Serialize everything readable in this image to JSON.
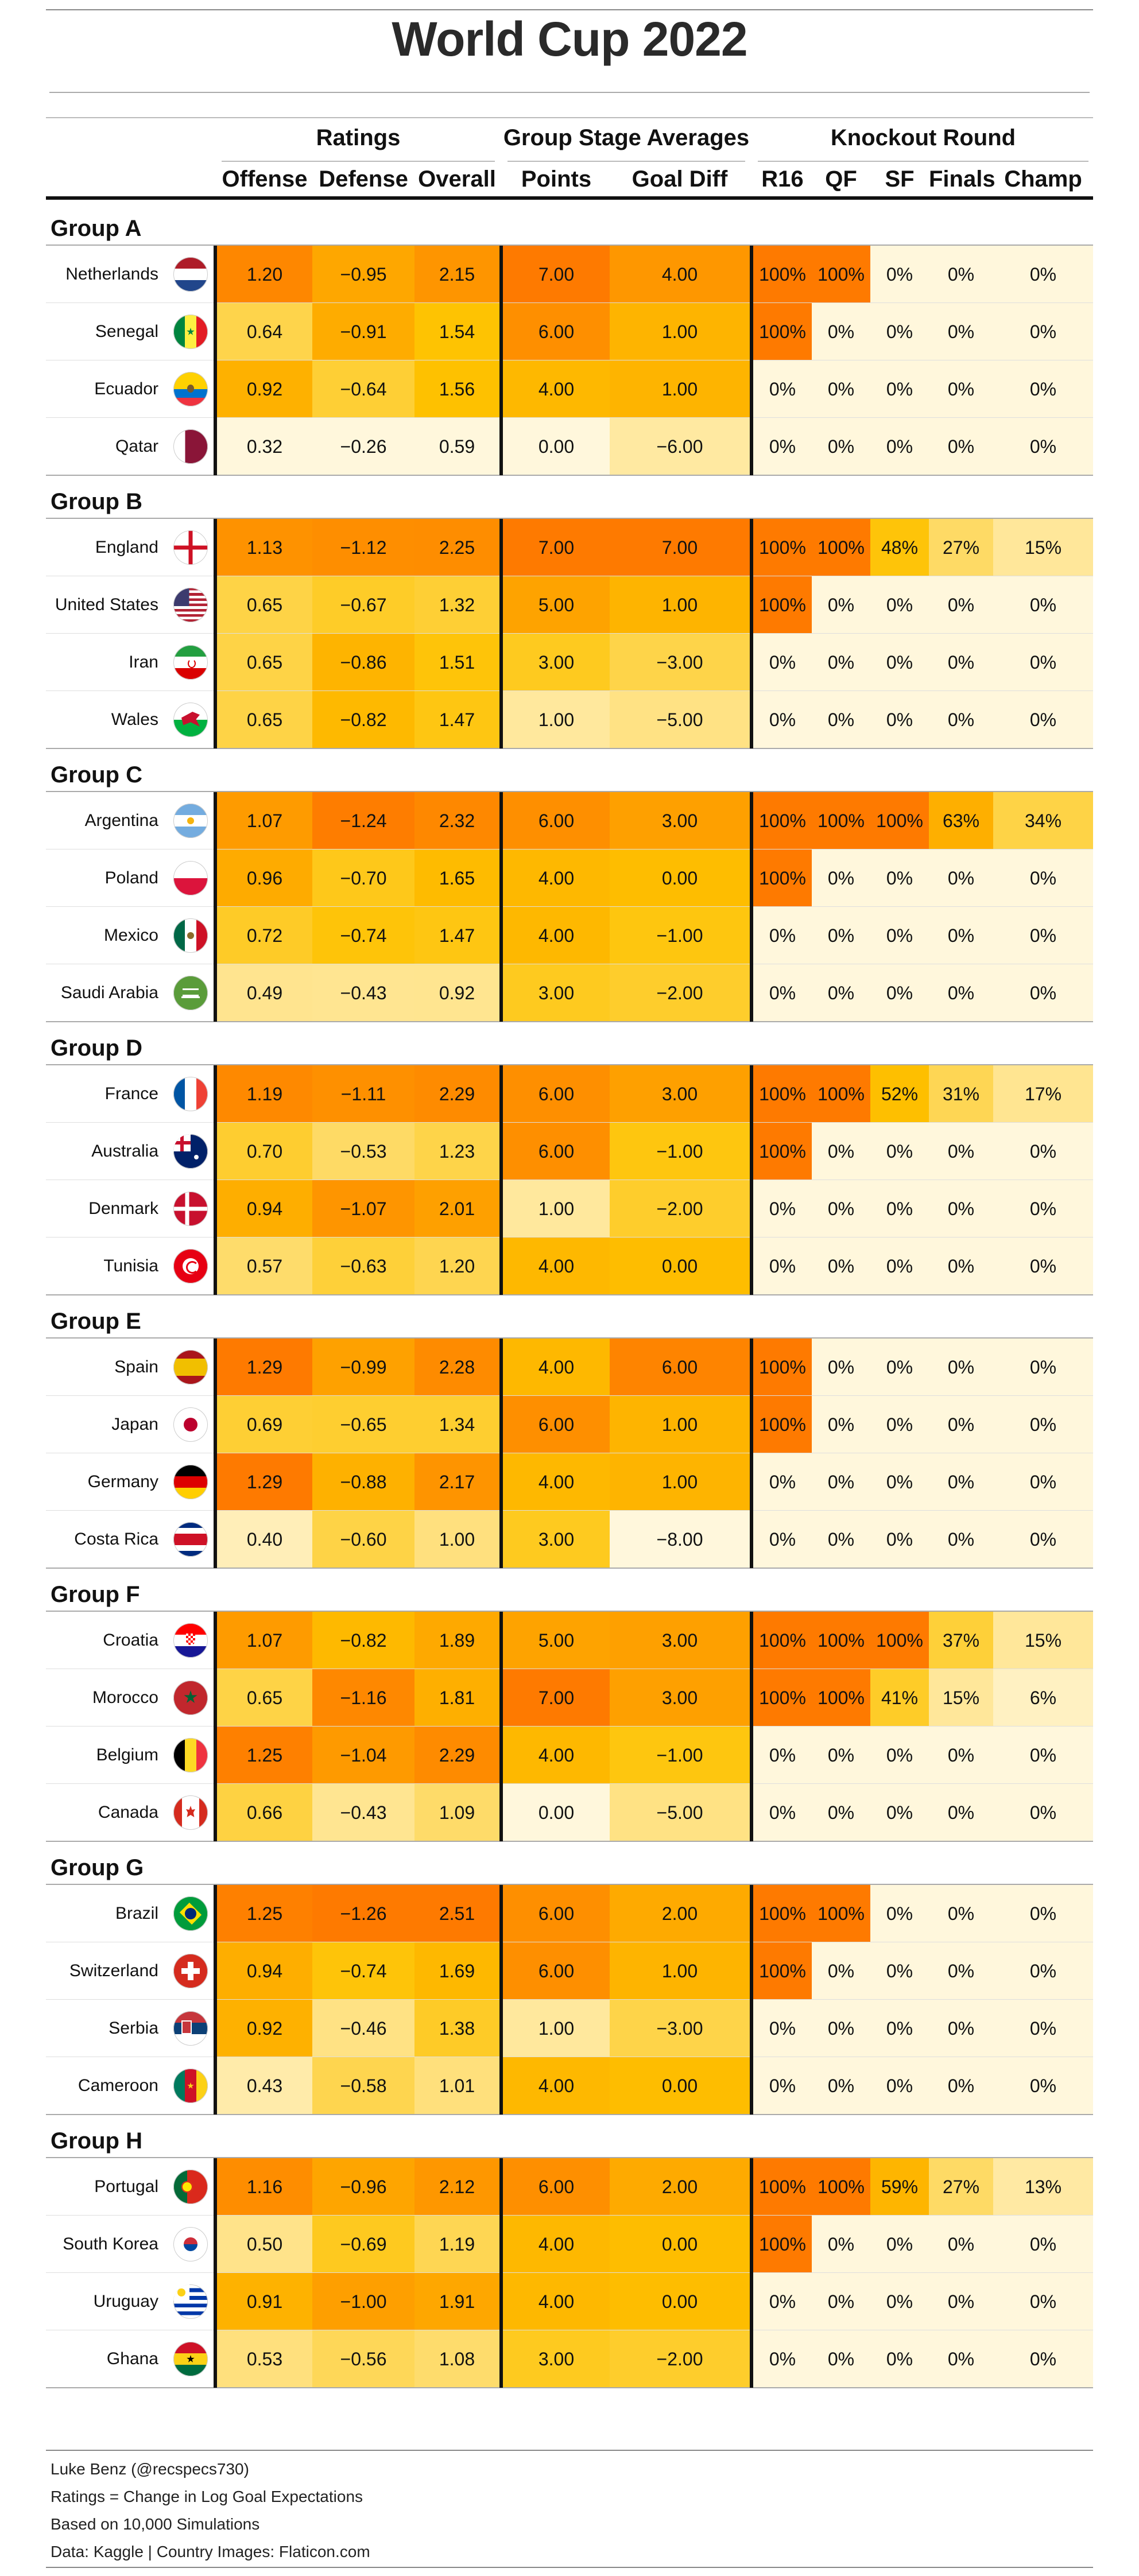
{
  "title": "World Cup 2022",
  "column_groups": [
    "Ratings",
    "Group Stage Averages",
    "Knockout Round"
  ],
  "columns": [
    "Offense",
    "Defense",
    "Overall",
    "Points",
    "Goal Diff",
    "R16",
    "QF",
    "SF",
    "Finals",
    "Champ"
  ],
  "footer": [
    "Luke Benz (@recspecs730)",
    "Ratings = Change in Log Goal Expectations",
    "Based on 10,000 Simulations",
    "Data: Kaggle | Country Images: Flaticon.com"
  ],
  "colors": {
    "low": "#fff7dc",
    "mid": "#fec200",
    "high": "#fe7a00",
    "divider": "#111111"
  },
  "chart_data": {
    "type": "table",
    "title": "World Cup 2022",
    "groups": [
      {
        "name": "Group A",
        "teams": [
          {
            "team": "Netherlands",
            "flag": "netherlands-flag-icon",
            "offense": "1.20",
            "defense": "−0.95",
            "overall": "2.15",
            "points": "7.00",
            "goal_diff": "4.00",
            "r16": "100%",
            "qf": "100%",
            "sf": "0%",
            "finals": "0%",
            "champ": "0%"
          },
          {
            "team": "Senegal",
            "flag": "senegal-flag-icon",
            "offense": "0.64",
            "defense": "−0.91",
            "overall": "1.54",
            "points": "6.00",
            "goal_diff": "1.00",
            "r16": "100%",
            "qf": "0%",
            "sf": "0%",
            "finals": "0%",
            "champ": "0%"
          },
          {
            "team": "Ecuador",
            "flag": "ecuador-flag-icon",
            "offense": "0.92",
            "defense": "−0.64",
            "overall": "1.56",
            "points": "4.00",
            "goal_diff": "1.00",
            "r16": "0%",
            "qf": "0%",
            "sf": "0%",
            "finals": "0%",
            "champ": "0%"
          },
          {
            "team": "Qatar",
            "flag": "qatar-flag-icon",
            "offense": "0.32",
            "defense": "−0.26",
            "overall": "0.59",
            "points": "0.00",
            "goal_diff": "−6.00",
            "r16": "0%",
            "qf": "0%",
            "sf": "0%",
            "finals": "0%",
            "champ": "0%"
          }
        ]
      },
      {
        "name": "Group B",
        "teams": [
          {
            "team": "England",
            "flag": "england-flag-icon",
            "offense": "1.13",
            "defense": "−1.12",
            "overall": "2.25",
            "points": "7.00",
            "goal_diff": "7.00",
            "r16": "100%",
            "qf": "100%",
            "sf": "48%",
            "finals": "27%",
            "champ": "15%"
          },
          {
            "team": "United States",
            "flag": "usa-flag-icon",
            "offense": "0.65",
            "defense": "−0.67",
            "overall": "1.32",
            "points": "5.00",
            "goal_diff": "1.00",
            "r16": "100%",
            "qf": "0%",
            "sf": "0%",
            "finals": "0%",
            "champ": "0%"
          },
          {
            "team": "Iran",
            "flag": "iran-flag-icon",
            "offense": "0.65",
            "defense": "−0.86",
            "overall": "1.51",
            "points": "3.00",
            "goal_diff": "−3.00",
            "r16": "0%",
            "qf": "0%",
            "sf": "0%",
            "finals": "0%",
            "champ": "0%"
          },
          {
            "team": "Wales",
            "flag": "wales-flag-icon",
            "offense": "0.65",
            "defense": "−0.82",
            "overall": "1.47",
            "points": "1.00",
            "goal_diff": "−5.00",
            "r16": "0%",
            "qf": "0%",
            "sf": "0%",
            "finals": "0%",
            "champ": "0%"
          }
        ]
      },
      {
        "name": "Group C",
        "teams": [
          {
            "team": "Argentina",
            "flag": "argentina-flag-icon",
            "offense": "1.07",
            "defense": "−1.24",
            "overall": "2.32",
            "points": "6.00",
            "goal_diff": "3.00",
            "r16": "100%",
            "qf": "100%",
            "sf": "100%",
            "finals": "63%",
            "champ": "34%"
          },
          {
            "team": "Poland",
            "flag": "poland-flag-icon",
            "offense": "0.96",
            "defense": "−0.70",
            "overall": "1.65",
            "points": "4.00",
            "goal_diff": "0.00",
            "r16": "100%",
            "qf": "0%",
            "sf": "0%",
            "finals": "0%",
            "champ": "0%"
          },
          {
            "team": "Mexico",
            "flag": "mexico-flag-icon",
            "offense": "0.72",
            "defense": "−0.74",
            "overall": "1.47",
            "points": "4.00",
            "goal_diff": "−1.00",
            "r16": "0%",
            "qf": "0%",
            "sf": "0%",
            "finals": "0%",
            "champ": "0%"
          },
          {
            "team": "Saudi Arabia",
            "flag": "saudi-arabia-flag-icon",
            "offense": "0.49",
            "defense": "−0.43",
            "overall": "0.92",
            "points": "3.00",
            "goal_diff": "−2.00",
            "r16": "0%",
            "qf": "0%",
            "sf": "0%",
            "finals": "0%",
            "champ": "0%"
          }
        ]
      },
      {
        "name": "Group D",
        "teams": [
          {
            "team": "France",
            "flag": "france-flag-icon",
            "offense": "1.19",
            "defense": "−1.11",
            "overall": "2.29",
            "points": "6.00",
            "goal_diff": "3.00",
            "r16": "100%",
            "qf": "100%",
            "sf": "52%",
            "finals": "31%",
            "champ": "17%"
          },
          {
            "team": "Australia",
            "flag": "australia-flag-icon",
            "offense": "0.70",
            "defense": "−0.53",
            "overall": "1.23",
            "points": "6.00",
            "goal_diff": "−1.00",
            "r16": "100%",
            "qf": "0%",
            "sf": "0%",
            "finals": "0%",
            "champ": "0%"
          },
          {
            "team": "Denmark",
            "flag": "denmark-flag-icon",
            "offense": "0.94",
            "defense": "−1.07",
            "overall": "2.01",
            "points": "1.00",
            "goal_diff": "−2.00",
            "r16": "0%",
            "qf": "0%",
            "sf": "0%",
            "finals": "0%",
            "champ": "0%"
          },
          {
            "team": "Tunisia",
            "flag": "tunisia-flag-icon",
            "offense": "0.57",
            "defense": "−0.63",
            "overall": "1.20",
            "points": "4.00",
            "goal_diff": "0.00",
            "r16": "0%",
            "qf": "0%",
            "sf": "0%",
            "finals": "0%",
            "champ": "0%"
          }
        ]
      },
      {
        "name": "Group E",
        "teams": [
          {
            "team": "Spain",
            "flag": "spain-flag-icon",
            "offense": "1.29",
            "defense": "−0.99",
            "overall": "2.28",
            "points": "4.00",
            "goal_diff": "6.00",
            "r16": "100%",
            "qf": "0%",
            "sf": "0%",
            "finals": "0%",
            "champ": "0%"
          },
          {
            "team": "Japan",
            "flag": "japan-flag-icon",
            "offense": "0.69",
            "defense": "−0.65",
            "overall": "1.34",
            "points": "6.00",
            "goal_diff": "1.00",
            "r16": "100%",
            "qf": "0%",
            "sf": "0%",
            "finals": "0%",
            "champ": "0%"
          },
          {
            "team": "Germany",
            "flag": "germany-flag-icon",
            "offense": "1.29",
            "defense": "−0.88",
            "overall": "2.17",
            "points": "4.00",
            "goal_diff": "1.00",
            "r16": "0%",
            "qf": "0%",
            "sf": "0%",
            "finals": "0%",
            "champ": "0%"
          },
          {
            "team": "Costa Rica",
            "flag": "costa-rica-flag-icon",
            "offense": "0.40",
            "defense": "−0.60",
            "overall": "1.00",
            "points": "3.00",
            "goal_diff": "−8.00",
            "r16": "0%",
            "qf": "0%",
            "sf": "0%",
            "finals": "0%",
            "champ": "0%"
          }
        ]
      },
      {
        "name": "Group F",
        "teams": [
          {
            "team": "Croatia",
            "flag": "croatia-flag-icon",
            "offense": "1.07",
            "defense": "−0.82",
            "overall": "1.89",
            "points": "5.00",
            "goal_diff": "3.00",
            "r16": "100%",
            "qf": "100%",
            "sf": "100%",
            "finals": "37%",
            "champ": "15%"
          },
          {
            "team": "Morocco",
            "flag": "morocco-flag-icon",
            "offense": "0.65",
            "defense": "−1.16",
            "overall": "1.81",
            "points": "7.00",
            "goal_diff": "3.00",
            "r16": "100%",
            "qf": "100%",
            "sf": "41%",
            "finals": "15%",
            "champ": "6%"
          },
          {
            "team": "Belgium",
            "flag": "belgium-flag-icon",
            "offense": "1.25",
            "defense": "−1.04",
            "overall": "2.29",
            "points": "4.00",
            "goal_diff": "−1.00",
            "r16": "0%",
            "qf": "0%",
            "sf": "0%",
            "finals": "0%",
            "champ": "0%"
          },
          {
            "team": "Canada",
            "flag": "canada-flag-icon",
            "offense": "0.66",
            "defense": "−0.43",
            "overall": "1.09",
            "points": "0.00",
            "goal_diff": "−5.00",
            "r16": "0%",
            "qf": "0%",
            "sf": "0%",
            "finals": "0%",
            "champ": "0%"
          }
        ]
      },
      {
        "name": "Group G",
        "teams": [
          {
            "team": "Brazil",
            "flag": "brazil-flag-icon",
            "offense": "1.25",
            "defense": "−1.26",
            "overall": "2.51",
            "points": "6.00",
            "goal_diff": "2.00",
            "r16": "100%",
            "qf": "100%",
            "sf": "0%",
            "finals": "0%",
            "champ": "0%"
          },
          {
            "team": "Switzerland",
            "flag": "switzerland-flag-icon",
            "offense": "0.94",
            "defense": "−0.74",
            "overall": "1.69",
            "points": "6.00",
            "goal_diff": "1.00",
            "r16": "100%",
            "qf": "0%",
            "sf": "0%",
            "finals": "0%",
            "champ": "0%"
          },
          {
            "team": "Serbia",
            "flag": "serbia-flag-icon",
            "offense": "0.92",
            "defense": "−0.46",
            "overall": "1.38",
            "points": "1.00",
            "goal_diff": "−3.00",
            "r16": "0%",
            "qf": "0%",
            "sf": "0%",
            "finals": "0%",
            "champ": "0%"
          },
          {
            "team": "Cameroon",
            "flag": "cameroon-flag-icon",
            "offense": "0.43",
            "defense": "−0.58",
            "overall": "1.01",
            "points": "4.00",
            "goal_diff": "0.00",
            "r16": "0%",
            "qf": "0%",
            "sf": "0%",
            "finals": "0%",
            "champ": "0%"
          }
        ]
      },
      {
        "name": "Group H",
        "teams": [
          {
            "team": "Portugal",
            "flag": "portugal-flag-icon",
            "offense": "1.16",
            "defense": "−0.96",
            "overall": "2.12",
            "points": "6.00",
            "goal_diff": "2.00",
            "r16": "100%",
            "qf": "100%",
            "sf": "59%",
            "finals": "27%",
            "champ": "13%"
          },
          {
            "team": "South Korea",
            "flag": "south-korea-flag-icon",
            "offense": "0.50",
            "defense": "−0.69",
            "overall": "1.19",
            "points": "4.00",
            "goal_diff": "0.00",
            "r16": "100%",
            "qf": "0%",
            "sf": "0%",
            "finals": "0%",
            "champ": "0%"
          },
          {
            "team": "Uruguay",
            "flag": "uruguay-flag-icon",
            "offense": "0.91",
            "defense": "−1.00",
            "overall": "1.91",
            "points": "4.00",
            "goal_diff": "0.00",
            "r16": "0%",
            "qf": "0%",
            "sf": "0%",
            "finals": "0%",
            "champ": "0%"
          },
          {
            "team": "Ghana",
            "flag": "ghana-flag-icon",
            "offense": "0.53",
            "defense": "−0.56",
            "overall": "1.08",
            "points": "3.00",
            "goal_diff": "−2.00",
            "r16": "0%",
            "qf": "0%",
            "sf": "0%",
            "finals": "0%",
            "champ": "0%"
          }
        ]
      }
    ]
  }
}
